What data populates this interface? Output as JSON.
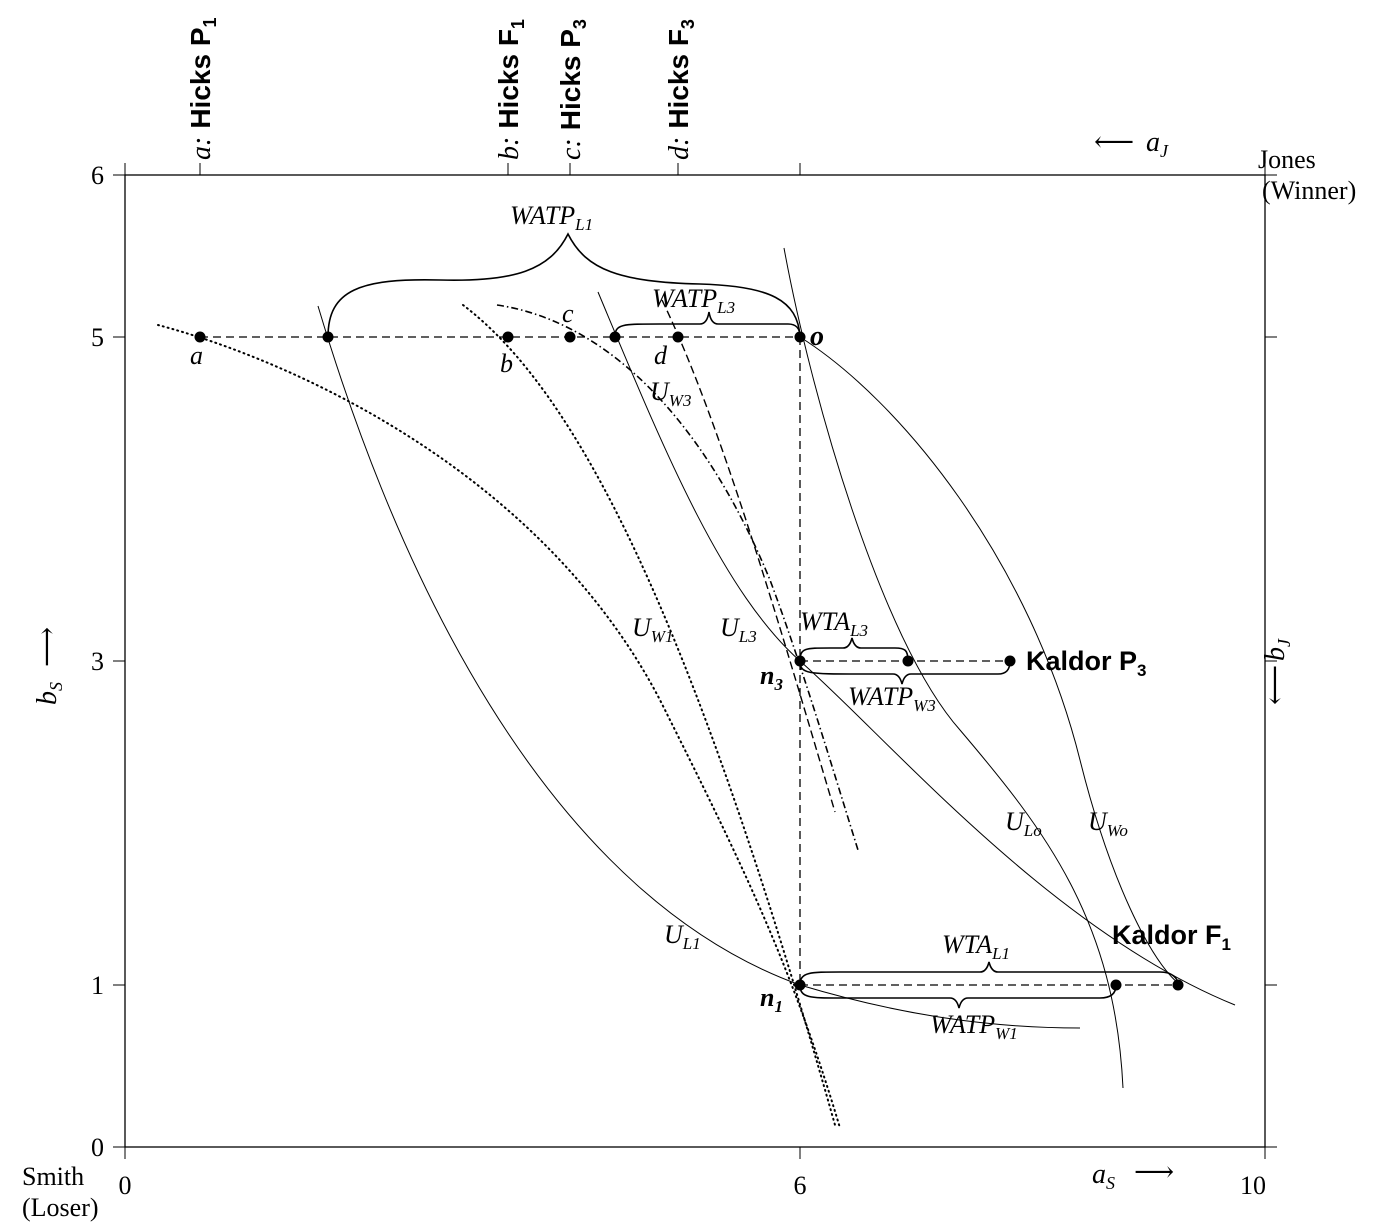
{
  "axes": {
    "x_ticks": [
      "0",
      "6",
      "10"
    ],
    "y_ticks": [
      "0",
      "1",
      "3",
      "5",
      "6"
    ],
    "x_label_main": "a",
    "x_label_sub": "S",
    "y_label_main": "b",
    "y_label_sub": "S",
    "top_label_main": "a",
    "top_label_sub": "J",
    "right_label_main": "b",
    "right_label_sub": "J",
    "arrow_right": "⟶",
    "arrow_left": "⟵",
    "arrow_up": "⟶"
  },
  "corners": {
    "origin_name": "Smith",
    "origin_role": "(Loser)",
    "far_name": "Jones",
    "far_role": "(Winner)"
  },
  "top_labels": [
    {
      "prefix": "a:",
      "name": "Hicks P",
      "sub": "1"
    },
    {
      "prefix": "b:",
      "name": "Hicks F",
      "sub": "1"
    },
    {
      "prefix": "c:",
      "name": "Hicks P",
      "sub": "3"
    },
    {
      "prefix": "d:",
      "name": "Hicks F",
      "sub": "3"
    }
  ],
  "point_labels": {
    "a": "a",
    "b": "b",
    "c": "c",
    "d": "d",
    "o": "o",
    "n3_main": "n",
    "n3_sub": "3",
    "n1_main": "n",
    "n1_sub": "1"
  },
  "kaldor": [
    {
      "name": "Kaldor P",
      "sub": "3"
    },
    {
      "name": "Kaldor F",
      "sub": "1"
    }
  ],
  "curve_labels": {
    "UW3": {
      "main": "U",
      "sub": "W3"
    },
    "UW1": {
      "main": "U",
      "sub": "W1"
    },
    "UL3": {
      "main": "U",
      "sub": "L3"
    },
    "ULo": {
      "main": "U",
      "sub": "Lo"
    },
    "UWo": {
      "main": "U",
      "sub": "Wo"
    },
    "UL1": {
      "main": "U",
      "sub": "L1"
    }
  },
  "brace_labels": {
    "WATP_L1": {
      "main": "WATP",
      "sub": "L1"
    },
    "WATP_L3": {
      "main": "WATP",
      "sub": "L3"
    },
    "WTA_L3": {
      "main": "WTA",
      "sub": "L3"
    },
    "WATP_W3": {
      "main": "WATP",
      "sub": "W3"
    },
    "WTA_L1": {
      "main": "WTA",
      "sub": "L1"
    },
    "WATP_W1": {
      "main": "WATP",
      "sub": "W1"
    }
  }
}
